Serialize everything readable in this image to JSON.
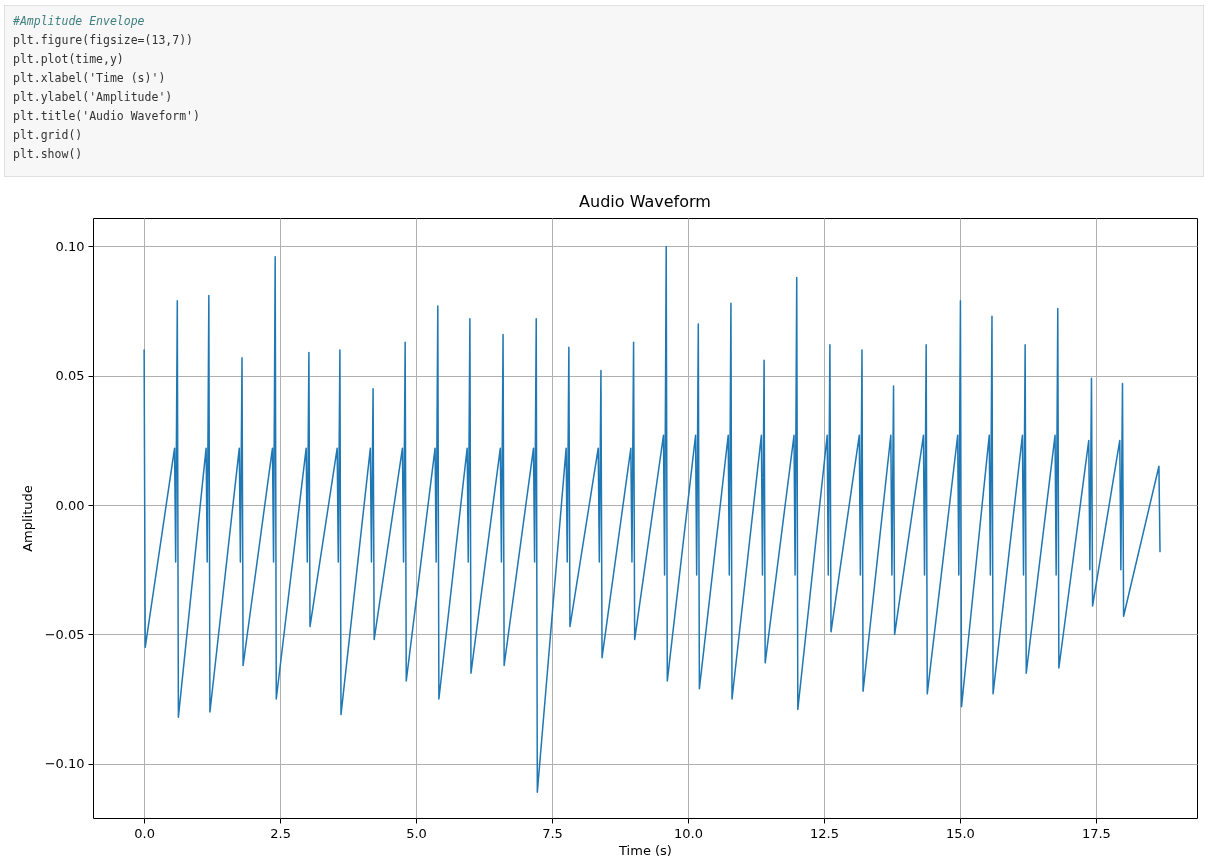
{
  "chart_data": {
    "type": "line",
    "title": "Audio Waveform",
    "xlabel": "Time (s)",
    "ylabel": "Amplitude",
    "annotations": [
      "#Amplitude Envelope",
      "plt.figure(figsize=(13,7))",
      "plt.plot(time,y)",
      "plt.xlabel('Time (s)')",
      "plt.ylabel('Amplitude')",
      "plt.title('Audio Waveform')",
      "plt.grid()",
      "plt.show()"
    ],
    "x": [
      0,
      0.02,
      0.56,
      0.58,
      0.61,
      0.63,
      1.14,
      1.16,
      1.19,
      1.21,
      1.75,
      1.77,
      1.8,
      1.82,
      2.36,
      2.38,
      2.41,
      2.43,
      2.98,
      3.0,
      3.03,
      3.05,
      3.55,
      3.57,
      3.6,
      3.62,
      4.16,
      4.18,
      4.21,
      4.23,
      4.75,
      4.77,
      4.8,
      4.82,
      5.35,
      5.37,
      5.4,
      5.42,
      5.94,
      5.96,
      5.99,
      6.01,
      6.55,
      6.57,
      6.6,
      6.62,
      7.16,
      7.18,
      7.21,
      7.23,
      7.76,
      7.78,
      7.81,
      7.83,
      8.35,
      8.37,
      8.4,
      8.42,
      8.95,
      8.97,
      9.0,
      9.02,
      9.55,
      9.57,
      9.6,
      9.62,
      10.14,
      10.16,
      10.19,
      10.21,
      10.74,
      10.76,
      10.79,
      10.81,
      11.35,
      11.37,
      11.4,
      11.42,
      11.95,
      11.97,
      12.0,
      12.02,
      12.56,
      12.58,
      12.61,
      12.63,
      13.15,
      13.17,
      13.2,
      13.22,
      13.73,
      13.75,
      13.78,
      13.8,
      14.33,
      14.35,
      14.38,
      14.4,
      14.96,
      14.98,
      15.01,
      15.03,
      15.54,
      15.56,
      15.59,
      15.61,
      16.15,
      16.17,
      16.2,
      16.22,
      16.75,
      16.77,
      16.8,
      16.82,
      17.37,
      17.39,
      17.42,
      17.44,
      17.94,
      17.96,
      17.99,
      18.01,
      18.66,
      18.68
    ],
    "series": [
      {
        "color": "#1f77b4",
        "values": [
          0.06,
          -0.055,
          0.022,
          -0.022,
          0.079,
          -0.082,
          0.022,
          -0.022,
          0.081,
          -0.08,
          0.022,
          -0.022,
          0.057,
          -0.062,
          0.022,
          -0.022,
          0.096,
          -0.075,
          0.022,
          -0.022,
          0.059,
          -0.047,
          0.022,
          -0.022,
          0.06,
          -0.081,
          0.022,
          -0.022,
          0.045,
          -0.052,
          0.022,
          -0.022,
          0.063,
          -0.068,
          0.022,
          -0.022,
          0.077,
          -0.075,
          0.022,
          -0.022,
          0.072,
          -0.065,
          0.022,
          -0.022,
          0.066,
          -0.062,
          0.022,
          -0.022,
          0.072,
          -0.111,
          0.022,
          -0.022,
          0.061,
          -0.047,
          0.022,
          -0.022,
          0.052,
          -0.059,
          0.022,
          -0.022,
          0.063,
          -0.052,
          0.027,
          -0.027,
          0.1,
          -0.068,
          0.027,
          -0.027,
          0.07,
          -0.071,
          0.027,
          -0.027,
          0.078,
          -0.075,
          0.027,
          -0.027,
          0.056,
          -0.061,
          0.027,
          -0.027,
          0.088,
          -0.079,
          0.027,
          -0.027,
          0.062,
          -0.049,
          0.027,
          -0.027,
          0.06,
          -0.072,
          0.027,
          -0.027,
          0.046,
          -0.05,
          0.027,
          -0.027,
          0.062,
          -0.073,
          0.027,
          -0.027,
          0.079,
          -0.078,
          0.027,
          -0.027,
          0.073,
          -0.073,
          0.027,
          -0.027,
          0.062,
          -0.065,
          0.027,
          -0.027,
          0.076,
          -0.063,
          0.025,
          -0.025,
          0.049,
          -0.039,
          0.025,
          -0.025,
          0.047,
          -0.043,
          0.015,
          -0.018
        ]
      }
    ],
    "xlim": [
      -0.94,
      19.36
    ],
    "ylim": [
      -0.121,
      0.111
    ],
    "xticks": [
      {
        "value": 0,
        "label": "0.0"
      },
      2.5,
      {
        "value": 5,
        "label": "5.0"
      },
      7.5,
      {
        "value": 10,
        "label": "10.0"
      },
      12.5,
      {
        "value": 15,
        "label": "15.0"
      },
      17.5
    ],
    "yticks": [
      {
        "value": -0.1,
        "label": "−0.10"
      },
      {
        "value": -0.05,
        "label": "−0.05"
      },
      {
        "value": 0,
        "label": "0.00"
      },
      {
        "value": 0.05,
        "label": "0.05"
      },
      {
        "value": 0.1,
        "label": "0.10"
      }
    ],
    "grid": true
  }
}
